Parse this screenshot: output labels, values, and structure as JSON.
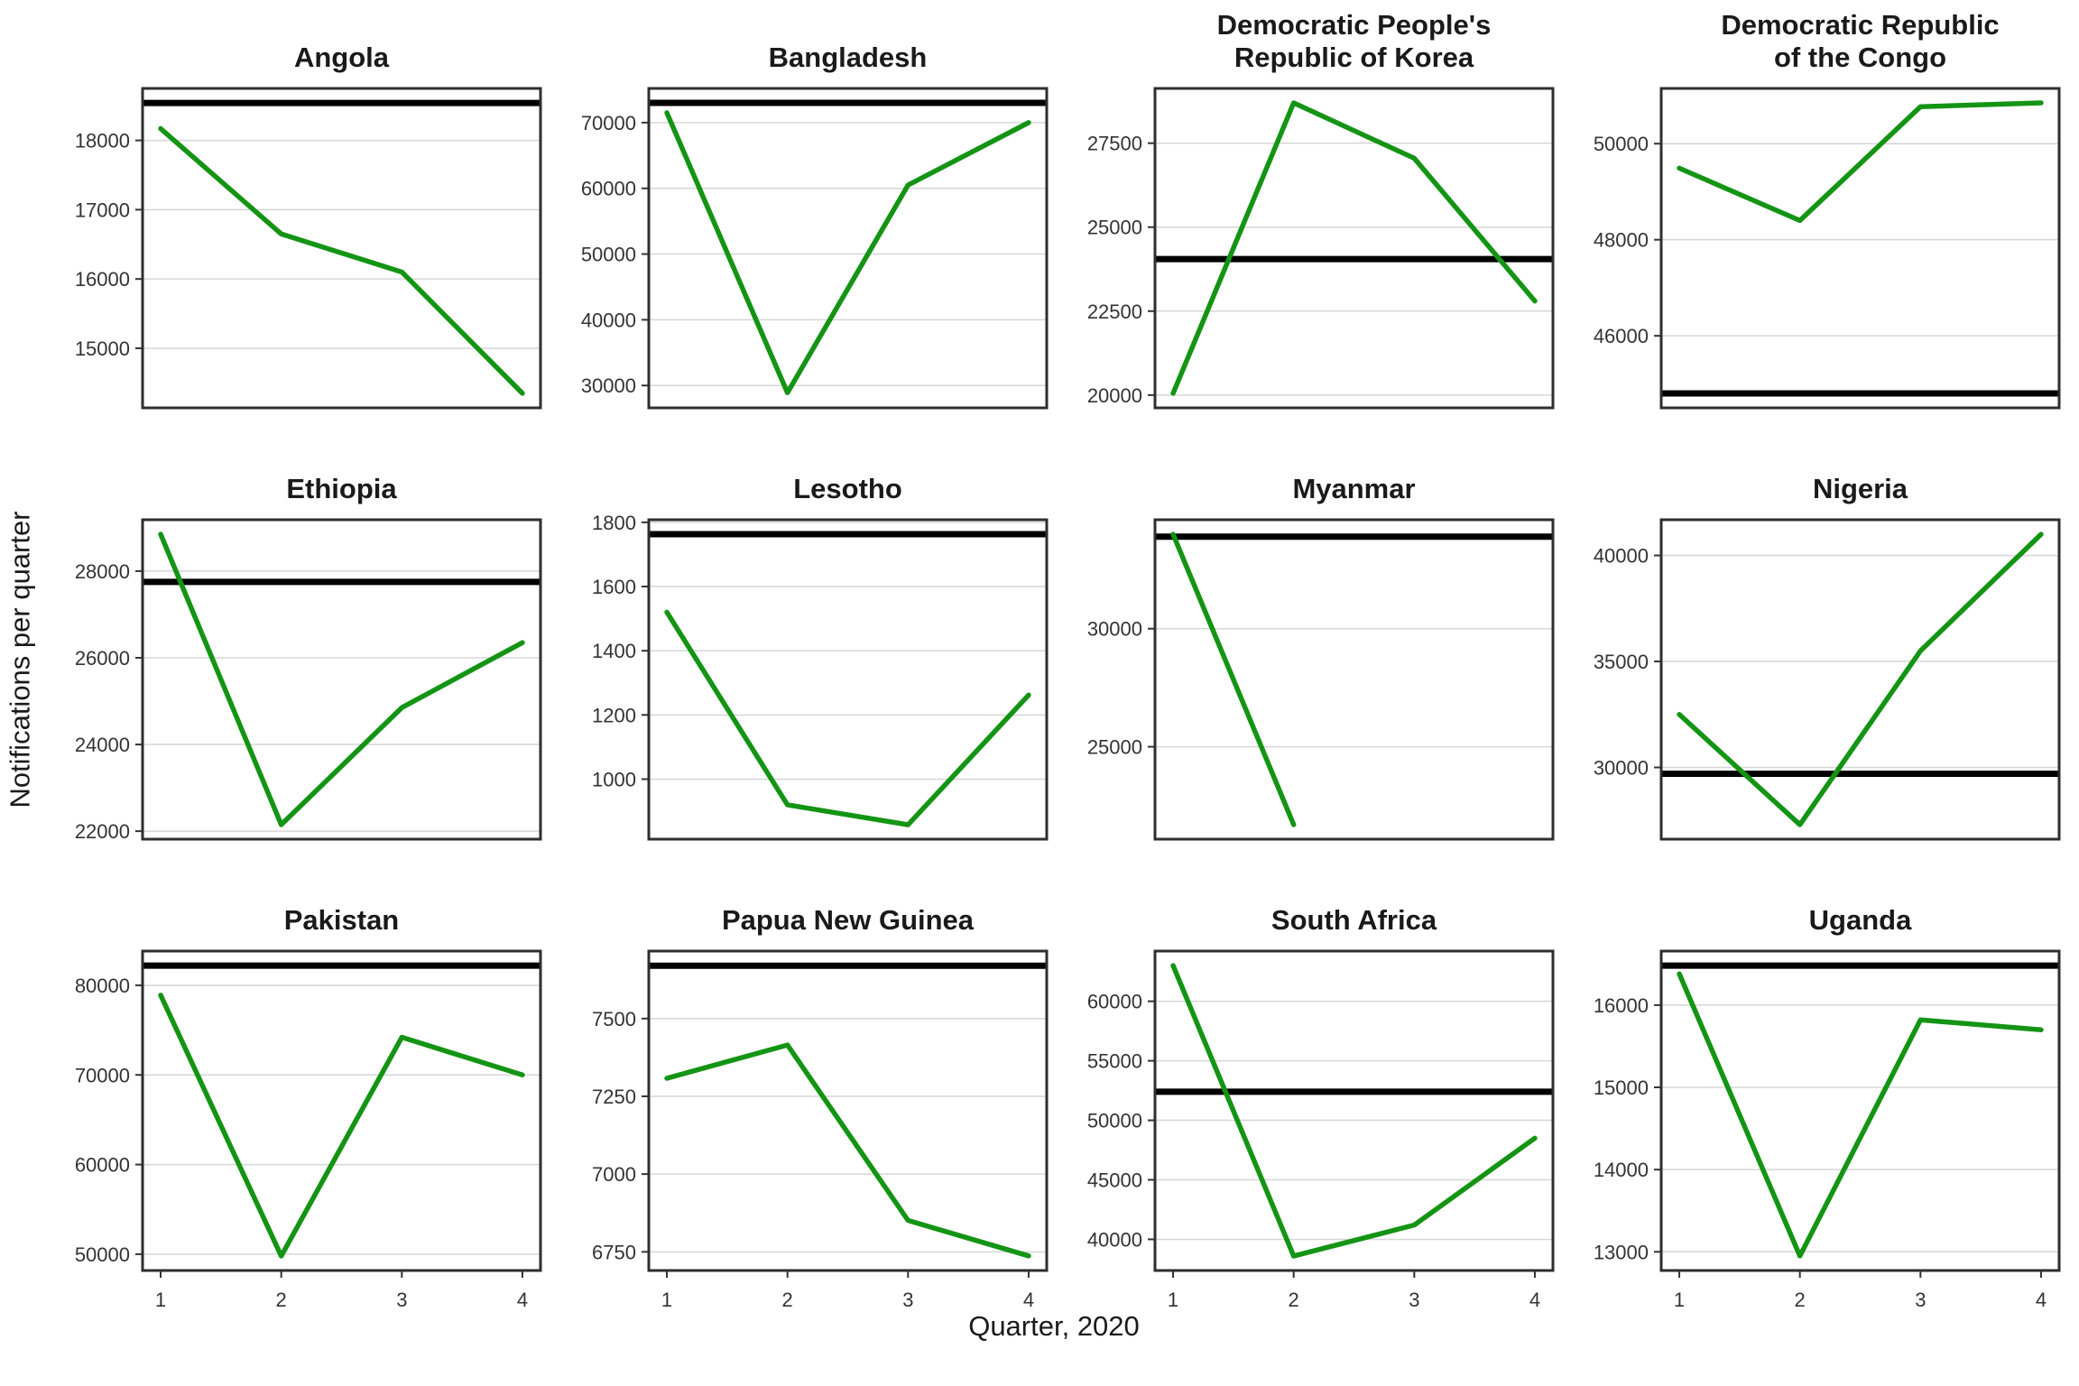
{
  "figure": {
    "y_axis_label": "Notifications per quarter",
    "x_axis_label": "Quarter, 2020",
    "x_ticks": [
      "1",
      "2",
      "3",
      "4"
    ],
    "colors": {
      "line": "#149414",
      "refline": "#000000",
      "grid": "#d6d6d6",
      "border": "#2e2e2e",
      "tick": "#333333",
      "tick_text": "#333333",
      "title_text": "#1a1a1a",
      "background": "#ffffff"
    }
  },
  "chart_data": [
    {
      "type": "line",
      "title": "Angola",
      "x": [
        1,
        2,
        3,
        4
      ],
      "values": [
        18170,
        16650,
        16100,
        14350
      ],
      "refline": 18540,
      "yticks": [
        15000,
        16000,
        17000,
        18000
      ],
      "ylim": [
        14140,
        18750
      ],
      "xlim": [
        0.85,
        4.15
      ]
    },
    {
      "type": "line",
      "title": "Bangladesh",
      "x": [
        1,
        2,
        3,
        4
      ],
      "values": [
        71500,
        28900,
        60500,
        70000
      ],
      "refline": 73000,
      "yticks": [
        30000,
        40000,
        50000,
        60000,
        70000
      ],
      "ylim": [
        26600,
        75200
      ],
      "xlim": [
        0.85,
        4.15
      ]
    },
    {
      "type": "line",
      "title": "Democratic People's\nRepublic of Korea",
      "x": [
        1,
        2,
        3,
        4
      ],
      "values": [
        20050,
        28700,
        27050,
        22800
      ],
      "refline": 24050,
      "yticks": [
        20000,
        22500,
        25000,
        27500
      ],
      "ylim": [
        19620,
        29130
      ],
      "xlim": [
        0.85,
        4.15
      ]
    },
    {
      "type": "line",
      "title": "Democratic Republic\nof the Congo",
      "x": [
        1,
        2,
        3,
        4
      ],
      "values": [
        49490,
        48400,
        50770,
        50850
      ],
      "refline": 44800,
      "yticks": [
        46000,
        48000,
        50000
      ],
      "ylim": [
        44500,
        51150
      ],
      "xlim": [
        0.85,
        4.15
      ]
    },
    {
      "type": "line",
      "title": "Ethiopia",
      "x": [
        1,
        2,
        3,
        4
      ],
      "values": [
        28850,
        22150,
        24850,
        26350
      ],
      "refline": 27750,
      "yticks": [
        22000,
        24000,
        26000,
        28000
      ],
      "ylim": [
        21815,
        29185
      ],
      "xlim": [
        0.85,
        4.15
      ]
    },
    {
      "type": "line",
      "title": "Lesotho",
      "x": [
        1,
        2,
        3,
        4
      ],
      "values": [
        1520,
        920,
        858,
        1262
      ],
      "refline": 1763,
      "yticks": [
        1000,
        1200,
        1400,
        1600,
        1800
      ],
      "ylim": [
        813,
        1808
      ],
      "xlim": [
        0.85,
        4.15
      ]
    },
    {
      "type": "line",
      "title": "Myanmar",
      "x": [
        1,
        2,
        3,
        4
      ],
      "values": [
        34000,
        21700,
        null,
        null
      ],
      "refline": 33900,
      "yticks": [
        25000,
        30000
      ],
      "ylim": [
        21085,
        34615
      ],
      "xlim": [
        0.85,
        4.15
      ]
    },
    {
      "type": "line",
      "title": "Nigeria",
      "x": [
        1,
        2,
        3,
        4
      ],
      "values": [
        32500,
        27300,
        35500,
        41000
      ],
      "refline": 29700,
      "yticks": [
        30000,
        35000,
        40000
      ],
      "ylim": [
        26615,
        41685
      ],
      "xlim": [
        0.85,
        4.15
      ]
    },
    {
      "type": "line",
      "title": "Pakistan",
      "x": [
        1,
        2,
        3,
        4
      ],
      "values": [
        78900,
        49800,
        74200,
        70000
      ],
      "refline": 82200,
      "yticks": [
        50000,
        60000,
        70000,
        80000
      ],
      "ylim": [
        48180,
        83820
      ],
      "xlim": [
        0.85,
        4.15
      ]
    },
    {
      "type": "line",
      "title": "Papua New Guinea",
      "x": [
        1,
        2,
        3,
        4
      ],
      "values": [
        7308,
        7415,
        6851,
        6737
      ],
      "refline": 7670,
      "yticks": [
        6750,
        7000,
        7250,
        7500
      ],
      "ylim": [
        6690,
        7717
      ],
      "xlim": [
        0.85,
        4.15
      ]
    },
    {
      "type": "line",
      "title": "South Africa",
      "x": [
        1,
        2,
        3,
        4
      ],
      "values": [
        63000,
        38600,
        41200,
        48500
      ],
      "refline": 52400,
      "yticks": [
        40000,
        45000,
        50000,
        55000,
        60000
      ],
      "ylim": [
        37380,
        64220
      ],
      "xlim": [
        0.85,
        4.15
      ]
    },
    {
      "type": "line",
      "title": "Uganda",
      "x": [
        1,
        2,
        3,
        4
      ],
      "values": [
        16380,
        12950,
        15820,
        15700
      ],
      "refline": 16480,
      "yticks": [
        13000,
        14000,
        15000,
        16000
      ],
      "ylim": [
        12773,
        16657
      ],
      "xlim": [
        0.85,
        4.15
      ]
    }
  ]
}
